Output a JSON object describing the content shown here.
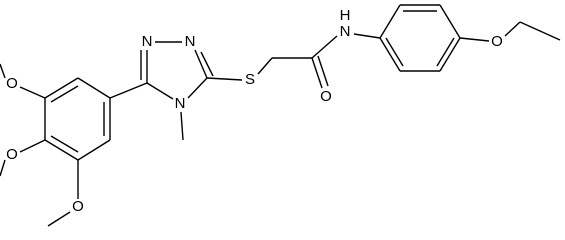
{
  "atoms": [
    {
      "label": "N"
    },
    {
      "label": "N"
    },
    {
      "label": "N"
    },
    {
      "label": "S"
    },
    {
      "label": "O"
    },
    {
      "label": "N"
    },
    {
      "label": "H"
    },
    {
      "label": "O"
    },
    {
      "label": "O"
    },
    {
      "label": "O"
    },
    {
      "label": "O"
    }
  ]
}
